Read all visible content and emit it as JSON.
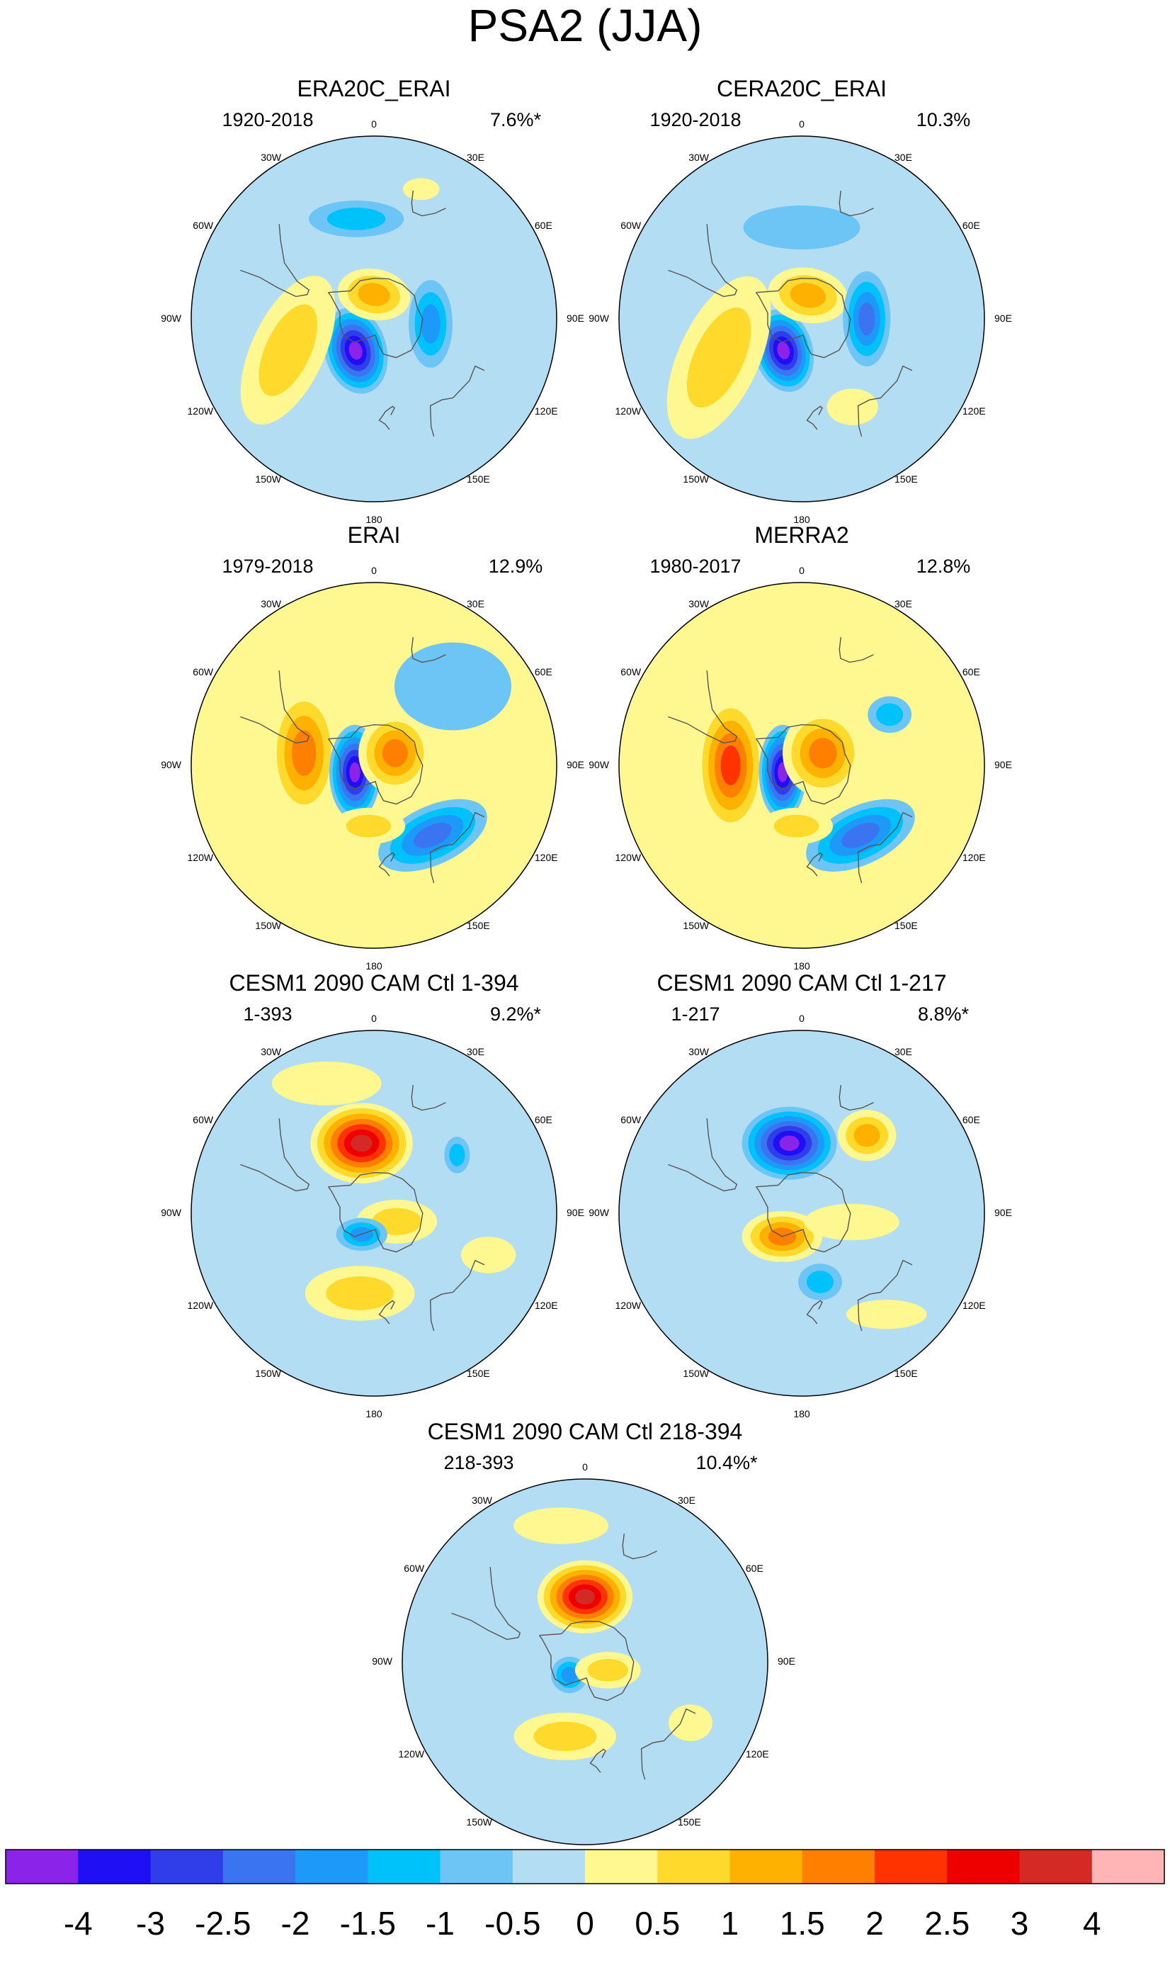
{
  "title": "PSA2 (JJA)",
  "panels": [
    {
      "title": "ERA20C_ERAI",
      "period": "1920-2018",
      "variance": "7.6%*",
      "bg": "#B3DDF2",
      "blobs": [
        {
          "kind": "neg",
          "lon": -150,
          "lat": -72,
          "rx": 0.17,
          "ry": 0.24,
          "rot": -15,
          "levels": 7
        },
        {
          "kind": "pos",
          "lon": -110,
          "lat": -45,
          "rx": 0.2,
          "ry": 0.44,
          "rot": 25,
          "levels": 2
        },
        {
          "kind": "pos",
          "lon": 0,
          "lat": -78,
          "rx": 0.2,
          "ry": 0.14,
          "rot": 10,
          "levels": 3
        },
        {
          "kind": "neg",
          "lon": 95,
          "lat": -62,
          "rx": 0.12,
          "ry": 0.24,
          "rot": 0,
          "levels": 3
        },
        {
          "kind": "neg",
          "lon": -10,
          "lat": -40,
          "rx": 0.26,
          "ry": 0.1,
          "rot": 0,
          "levels": 2
        },
        {
          "kind": "pos",
          "lon": 20,
          "lat": -22,
          "rx": 0.1,
          "ry": 0.06,
          "rot": 0,
          "levels": 1
        }
      ]
    },
    {
      "title": "CERA20C_ERAI",
      "period": "1920-2018",
      "variance": "10.3%",
      "bg": "#B3DDF2",
      "blobs": [
        {
          "kind": "neg",
          "lon": -150,
          "lat": -72,
          "rx": 0.16,
          "ry": 0.23,
          "rot": -15,
          "levels": 7
        },
        {
          "kind": "pos",
          "lon": -115,
          "lat": -45,
          "rx": 0.22,
          "ry": 0.48,
          "rot": 25,
          "levels": 2
        },
        {
          "kind": "pos",
          "lon": 15,
          "lat": -78,
          "rx": 0.22,
          "ry": 0.15,
          "rot": 10,
          "levels": 3
        },
        {
          "kind": "neg",
          "lon": 90,
          "lat": -58,
          "rx": 0.13,
          "ry": 0.26,
          "rot": 0,
          "levels": 4
        },
        {
          "kind": "neg",
          "lon": 0,
          "lat": -45,
          "rx": 0.32,
          "ry": 0.12,
          "rot": 0,
          "levels": 1
        },
        {
          "kind": "pos",
          "lon": 150,
          "lat": -40,
          "rx": 0.14,
          "ry": 0.1,
          "rot": 0,
          "levels": 1
        }
      ]
    },
    {
      "title": "ERAI",
      "period": "1979-2018",
      "variance": "12.9%",
      "bg": "#FFF78F",
      "blobs": [
        {
          "kind": "neg",
          "lon": 45,
          "lat": -35,
          "rx": 0.32,
          "ry": 0.24,
          "rot": 0,
          "levels": 1
        },
        {
          "kind": "neg",
          "lon": 140,
          "lat": -45,
          "rx": 0.32,
          "ry": 0.16,
          "rot": -25,
          "levels": 4
        },
        {
          "kind": "pos",
          "lon": -80,
          "lat": -55,
          "rx": 0.19,
          "ry": 0.36,
          "rot": 0,
          "levels": 4
        },
        {
          "kind": "neg",
          "lon": -110,
          "lat": -80,
          "rx": 0.14,
          "ry": 0.26,
          "rot": 0,
          "levels": 7
        },
        {
          "kind": "pos",
          "lon": 60,
          "lat": -78,
          "rx": 0.2,
          "ry": 0.22,
          "rot": 0,
          "levels": 4
        },
        {
          "kind": "pos",
          "lon": -175,
          "lat": -60,
          "rx": 0.2,
          "ry": 0.1,
          "rot": 0,
          "levels": 2
        }
      ]
    },
    {
      "title": "MERRA2",
      "period": "1980-2017",
      "variance": "12.8%",
      "bg": "#FFF78F",
      "blobs": [
        {
          "kind": "neg",
          "lon": 60,
          "lat": -40,
          "rx": 0.12,
          "ry": 0.1,
          "rot": 0,
          "levels": 2
        },
        {
          "kind": "neg",
          "lon": 140,
          "lat": -45,
          "rx": 0.32,
          "ry": 0.16,
          "rot": -25,
          "levels": 4
        },
        {
          "kind": "pos",
          "lon": -90,
          "lat": -55,
          "rx": 0.19,
          "ry": 0.38,
          "rot": 0,
          "levels": 5
        },
        {
          "kind": "neg",
          "lon": -110,
          "lat": -80,
          "rx": 0.13,
          "ry": 0.26,
          "rot": 0,
          "levels": 7
        },
        {
          "kind": "pos",
          "lon": 60,
          "lat": -78,
          "rx": 0.22,
          "ry": 0.24,
          "rot": 0,
          "levels": 4
        },
        {
          "kind": "pos",
          "lon": -175,
          "lat": -60,
          "rx": 0.2,
          "ry": 0.1,
          "rot": 0,
          "levels": 2
        }
      ]
    },
    {
      "title": "CESM1 2090 CAM Ctl 1-394",
      "period": "1-393",
      "variance": "9.2%*",
      "bg": "#B3DDF2",
      "blobs": [
        {
          "kind": "pos",
          "lon": -10,
          "lat": -55,
          "rx": 0.28,
          "ry": 0.22,
          "rot": 0,
          "levels": 7
        },
        {
          "kind": "pos",
          "lon": -20,
          "lat": -22,
          "rx": 0.3,
          "ry": 0.12,
          "rot": 0,
          "levels": 1
        },
        {
          "kind": "neg",
          "lon": 55,
          "lat": -40,
          "rx": 0.07,
          "ry": 0.1,
          "rot": 0,
          "levels": 2
        },
        {
          "kind": "pos",
          "lon": 110,
          "lat": -78,
          "rx": 0.22,
          "ry": 0.12,
          "rot": 0,
          "levels": 2
        },
        {
          "kind": "neg",
          "lon": -150,
          "lat": -78,
          "rx": 0.14,
          "ry": 0.09,
          "rot": 0,
          "levels": 3
        },
        {
          "kind": "pos",
          "lon": -170,
          "lat": -50,
          "rx": 0.3,
          "ry": 0.15,
          "rot": 0,
          "levels": 2
        },
        {
          "kind": "pos",
          "lon": 110,
          "lat": -30,
          "rx": 0.15,
          "ry": 0.1,
          "rot": 0,
          "levels": 1
        }
      ]
    },
    {
      "title": "CESM1 2090 CAM Ctl 1-217",
      "period": "1-217",
      "variance": "8.8%*",
      "bg": "#B3DDF2",
      "blobs": [
        {
          "kind": "neg",
          "lon": -10,
          "lat": -55,
          "rx": 0.26,
          "ry": 0.2,
          "rot": 0,
          "levels": 7
        },
        {
          "kind": "pos",
          "lon": 40,
          "lat": -40,
          "rx": 0.16,
          "ry": 0.14,
          "rot": 0,
          "levels": 3
        },
        {
          "kind": "pos",
          "lon": -140,
          "lat": -75,
          "rx": 0.22,
          "ry": 0.14,
          "rot": 0,
          "levels": 4
        },
        {
          "kind": "pos",
          "lon": 100,
          "lat": -65,
          "rx": 0.26,
          "ry": 0.1,
          "rot": 0,
          "levels": 1
        },
        {
          "kind": "neg",
          "lon": 165,
          "lat": -55,
          "rx": 0.12,
          "ry": 0.1,
          "rot": 0,
          "levels": 2
        },
        {
          "kind": "pos",
          "lon": 140,
          "lat": -25,
          "rx": 0.22,
          "ry": 0.08,
          "rot": 0,
          "levels": 1
        }
      ]
    },
    {
      "title": "CESM1 2090 CAM Ctl 218-394",
      "period": "218-393",
      "variance": "10.4%*",
      "bg": "#B3DDF2",
      "blobs": [
        {
          "kind": "pos",
          "lon": 0,
          "lat": -58,
          "rx": 0.26,
          "ry": 0.2,
          "rot": 0,
          "levels": 7
        },
        {
          "kind": "pos",
          "lon": -10,
          "lat": -22,
          "rx": 0.26,
          "ry": 0.1,
          "rot": 0,
          "levels": 1
        },
        {
          "kind": "neg",
          "lon": -130,
          "lat": -80,
          "rx": 0.1,
          "ry": 0.1,
          "rot": 0,
          "levels": 3
        },
        {
          "kind": "pos",
          "lon": 110,
          "lat": -78,
          "rx": 0.18,
          "ry": 0.1,
          "rot": 0,
          "levels": 2
        },
        {
          "kind": "pos",
          "lon": -165,
          "lat": -52,
          "rx": 0.28,
          "ry": 0.13,
          "rot": 0,
          "levels": 2
        },
        {
          "kind": "pos",
          "lon": 120,
          "lat": -30,
          "rx": 0.12,
          "ry": 0.1,
          "rot": 0,
          "levels": 1
        }
      ]
    }
  ],
  "lon_labels": [
    "0",
    "30E",
    "60E",
    "90E",
    "120E",
    "150E",
    "180",
    "150W",
    "120W",
    "90W",
    "60W",
    "30W"
  ],
  "colorbar": {
    "colors": [
      "#8B23E8",
      "#1F0FF5",
      "#2F3EE8",
      "#3A74F0",
      "#1D99F9",
      "#00C2FA",
      "#6DC5F5",
      "#B3DDF2",
      "#FFF78F",
      "#FFD92B",
      "#FFB100",
      "#FF7F00",
      "#FF3300",
      "#EE0000",
      "#D42A25",
      "#FFB5B5"
    ],
    "labels": [
      "-4",
      "-3",
      "-2.5",
      "-2",
      "-1.5",
      "-1",
      "-0.5",
      "0",
      "0.5",
      "1",
      "1.5",
      "2",
      "2.5",
      "3",
      "4"
    ]
  },
  "neg_scale": [
    "#6DC5F5",
    "#00C2FA",
    "#1D99F9",
    "#3A74F0",
    "#2F3EE8",
    "#1F0FF5",
    "#8B23E8"
  ],
  "pos_scale": [
    "#FFF78F",
    "#FFD92B",
    "#FFB100",
    "#FF7F00",
    "#FF3300",
    "#EE0000",
    "#D42A25"
  ]
}
